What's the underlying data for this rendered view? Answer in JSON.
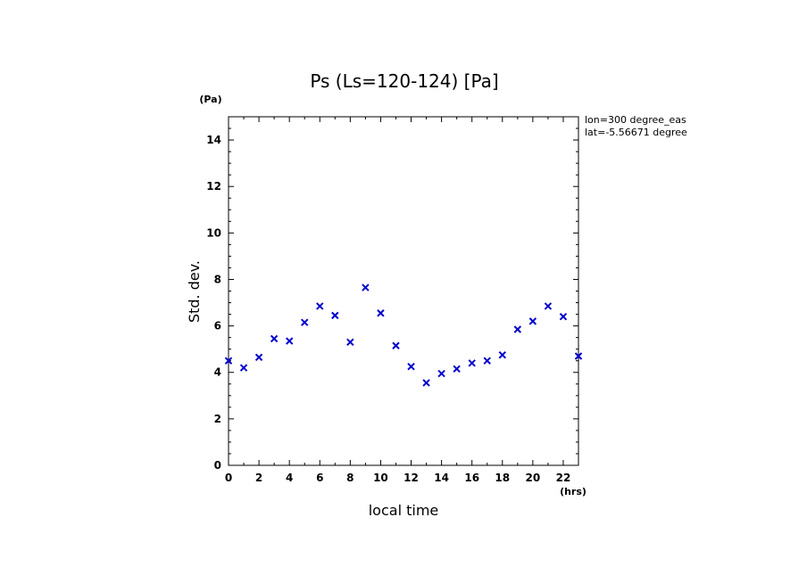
{
  "chart_data": {
    "type": "scatter",
    "title": "Ps (Ls=120-124) [Pa]",
    "xlabel": "local time",
    "ylabel": "Std. dev.",
    "xunit": "(hrs)",
    "yunit": "(Pa)",
    "xlim": [
      0,
      23
    ],
    "ylim": [
      0,
      15
    ],
    "xticks": [
      "0",
      "2",
      "4",
      "6",
      "8",
      "10",
      "12",
      "14",
      "16",
      "18",
      "20",
      "22"
    ],
    "yticks": [
      "0",
      "2",
      "4",
      "6",
      "8",
      "10",
      "12",
      "14"
    ],
    "annotations": [
      "lon=300 degree_eas",
      "lat=-5.56671 degree"
    ],
    "marker": "x",
    "marker_color": "#0000cc",
    "grid": false,
    "x": [
      0,
      1,
      2,
      3,
      4,
      5,
      6,
      7,
      8,
      9,
      10,
      11,
      12,
      13,
      14,
      15,
      16,
      17,
      18,
      19,
      20,
      21,
      22,
      23
    ],
    "y": [
      4.5,
      4.2,
      4.65,
      5.45,
      5.35,
      6.15,
      6.85,
      6.45,
      5.3,
      7.65,
      6.55,
      5.15,
      4.25,
      3.55,
      3.95,
      4.15,
      4.4,
      4.5,
      4.75,
      5.85,
      6.2,
      6.85,
      6.4,
      4.7
    ]
  }
}
